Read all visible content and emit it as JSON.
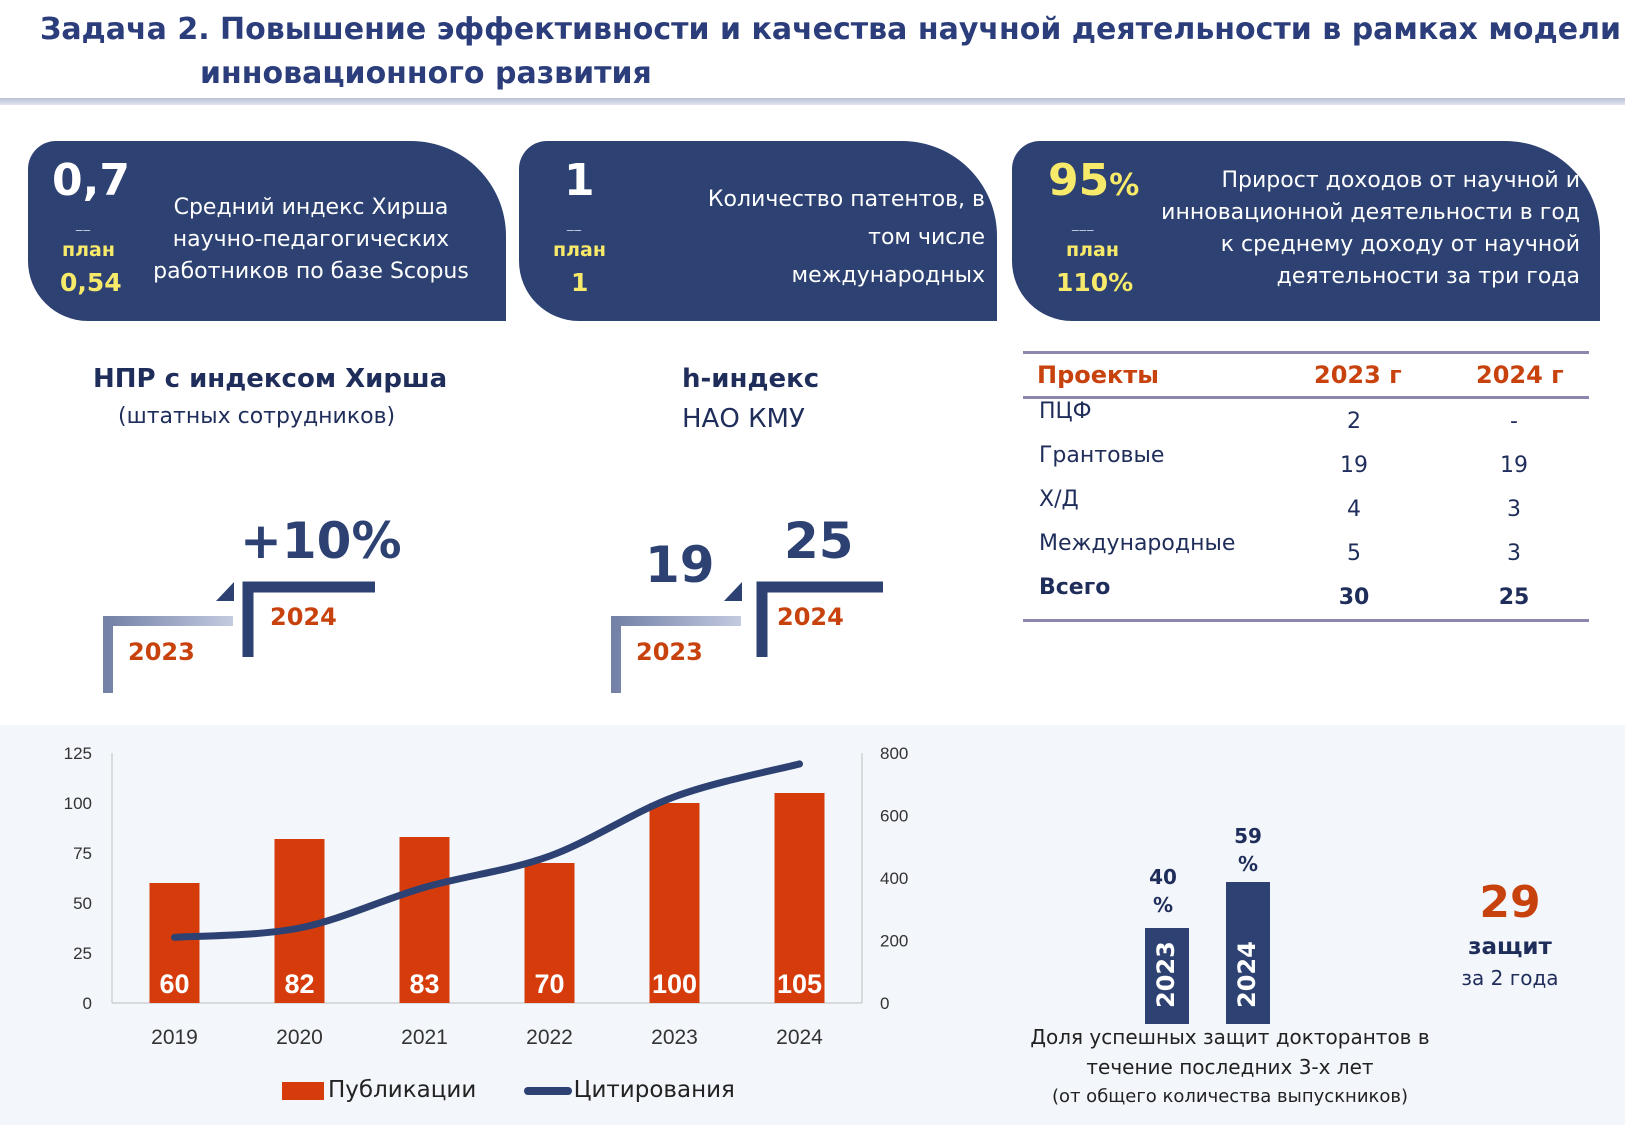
{
  "header": {
    "title_line1": "Задача 2. Повышение эффективности и качества научной деятельности в рамках модели",
    "title_line2": "инновационного развития"
  },
  "kpis": [
    {
      "value": "0,7",
      "dash": "__",
      "plan_label": "план",
      "plan_value": "0,54",
      "description": [
        "Средний индекс Хирша",
        "научно-педагогических",
        "работников по базе Scopus"
      ]
    },
    {
      "value": "1",
      "dash": "__",
      "plan_label": "план",
      "plan_value": "1",
      "description": [
        "Количество патентов, в",
        "том числе",
        "международных"
      ]
    },
    {
      "value": "95",
      "value_suffix": "%",
      "dash": "___",
      "plan_label": "план",
      "plan_value": "110%",
      "description": [
        "Прирост доходов от научной и",
        "инновационной деятельности в год",
        "к среднему доходу от научной",
        "деятельности за три года"
      ]
    }
  ],
  "hirsch_staff": {
    "title": "НПР с индексом Хирша",
    "subtitle": "(штатных сотрудников)",
    "growth": "+10%",
    "year_prev": "2023",
    "year_curr": "2024"
  },
  "h_index": {
    "title": "h-индекс",
    "subtitle": "НАО КМУ",
    "value_prev": "19",
    "value_curr": "25",
    "year_prev": "2023",
    "year_curr": "2024"
  },
  "projects_table": {
    "headers": [
      "Проекты",
      "2023 г",
      "2024 г"
    ],
    "rows": [
      [
        "ПЦФ",
        "2",
        "-"
      ],
      [
        "Грантовые",
        "19",
        "19"
      ],
      [
        "Х/Д",
        "4",
        "3"
      ],
      [
        "Международные",
        "5",
        "3"
      ]
    ],
    "total": [
      "Всего",
      "30",
      "25"
    ]
  },
  "chart_data": {
    "type": "bar",
    "categories": [
      "2019",
      "2020",
      "2021",
      "2022",
      "2023",
      "2024"
    ],
    "series": [
      {
        "name": "Публикации",
        "type": "bar",
        "axis": "left",
        "values": [
          60,
          82,
          83,
          70,
          100,
          105
        ]
      },
      {
        "name": "Цитирования",
        "type": "line",
        "axis": "right",
        "values": [
          210,
          240,
          370,
          470,
          660,
          765
        ]
      }
    ],
    "y_left": {
      "min": 0,
      "max": 125,
      "ticks": [
        0,
        25,
        50,
        75,
        100,
        125
      ]
    },
    "y_right": {
      "min": 0,
      "max": 800,
      "ticks": [
        0,
        200,
        400,
        600,
        800
      ]
    },
    "legend_position": "bottom",
    "grid": false,
    "colors": {
      "bar": "#d63c0b",
      "line": "#2d4272"
    }
  },
  "legend": {
    "bar_label": "Публикации",
    "line_label": "Цитирования"
  },
  "defenses": {
    "bars": [
      {
        "year": "2023",
        "pct_num": "40",
        "pct_sign": "%",
        "value": 40
      },
      {
        "year": "2024",
        "pct_num": "59",
        "pct_sign": "%",
        "value": 59
      }
    ],
    "caption_line1": "Доля успешных защит докторантов в",
    "caption_line2": "течение последних 3-х лет",
    "caption_line3": "(от общего количества выпускников)",
    "count": "29",
    "count_word": "защит",
    "count_period": "за 2 года"
  },
  "colors": {
    "navy": "#2d4272",
    "orange": "#c8420e",
    "yellow": "#f7e96a"
  }
}
